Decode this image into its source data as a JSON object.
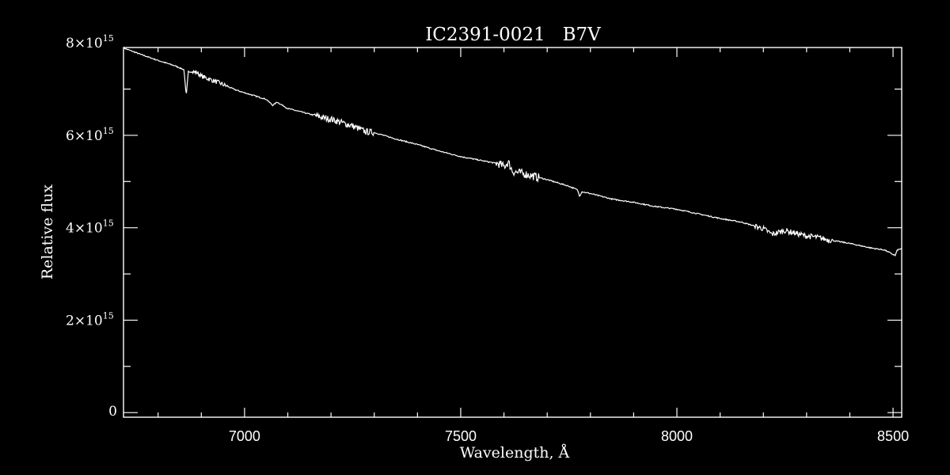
{
  "chart_data": {
    "type": "line",
    "title": "IC2391-0021   B7V",
    "xlabel": "Wavelength, Å",
    "ylabel": "Relative flux",
    "xlim": [
      6720,
      8520
    ],
    "ylim": [
      -100000000000000.0,
      7900000000000000.0
    ],
    "x_ticks": [
      7000,
      7500,
      8000,
      8500
    ],
    "x_tick_labels": [
      "7000",
      "7500",
      "8000",
      "8500"
    ],
    "x_minor_step": 100,
    "y_ticks": [
      0,
      2000000000000000.0,
      4000000000000000.0,
      6000000000000000.0,
      8000000000000000.0
    ],
    "y_tick_labels": [
      {
        "mantissa": "0",
        "times": "",
        "exponent": ""
      },
      {
        "mantissa": "2",
        "times": "×10",
        "exponent": "15"
      },
      {
        "mantissa": "4",
        "times": "×10",
        "exponent": "15"
      },
      {
        "mantissa": "6",
        "times": "×10",
        "exponent": "15"
      },
      {
        "mantissa": "8",
        "times": "×10",
        "exponent": "15"
      }
    ],
    "y_minor_step": 1000000000000000.0,
    "grid": false,
    "line_color": "#ffffff",
    "series": [
      {
        "x": [
          6720,
          6760,
          6800,
          6840,
          6860,
          6865,
          6870,
          6890,
          6900,
          6940,
          6980,
          7000,
          7050,
          7065,
          7070,
          7075,
          7100,
          7150,
          7190,
          7200,
          7250,
          7280,
          7300,
          7350,
          7400,
          7450,
          7500,
          7550,
          7590,
          7600,
          7610,
          7620,
          7650,
          7700,
          7750,
          7770,
          7775,
          7780,
          7800,
          7850,
          7900,
          7950,
          8000,
          8050,
          8100,
          8150,
          8200,
          8220,
          8250,
          8300,
          8320,
          8350,
          8400,
          8450,
          8480,
          8500,
          8505,
          8510,
          8520
        ],
        "y": [
          7890000000000000.0,
          7750000000000000.0,
          7620000000000000.0,
          7500000000000000.0,
          7420000000000000.0,
          6850000000000000.0,
          7380000000000000.0,
          7360000000000000.0,
          7280000000000000.0,
          7140000000000000.0,
          6980000000000000.0,
          6920000000000000.0,
          6780000000000000.0,
          6650000000000000.0,
          6680000000000000.0,
          6720000000000000.0,
          6580000000000000.0,
          6460000000000000.0,
          6360000000000000.0,
          6350000000000000.0,
          6200000000000000.0,
          6080000000000000.0,
          6060000000000000.0,
          5920000000000000.0,
          5800000000000000.0,
          5660000000000000.0,
          5540000000000000.0,
          5450000000000000.0,
          5380000000000000.0,
          5320000000000000.0,
          5420000000000000.0,
          5220000000000000.0,
          5160000000000000.0,
          5040000000000000.0,
          4900000000000000.0,
          4820000000000000.0,
          4680000000000000.0,
          4780000000000000.0,
          4740000000000000.0,
          4620000000000000.0,
          4550000000000000.0,
          4460000000000000.0,
          4400000000000000.0,
          4300000000000000.0,
          4200000000000000.0,
          4120000000000000.0,
          3980000000000000.0,
          3860000000000000.0,
          3940000000000000.0,
          3820000000000000.0,
          3800000000000000.0,
          3740000000000000.0,
          3660000000000000.0,
          3560000000000000.0,
          3520000000000000.0,
          3420000000000000.0,
          3400000000000000.0,
          3520000000000000.0,
          3550000000000000.0
        ]
      }
    ]
  }
}
